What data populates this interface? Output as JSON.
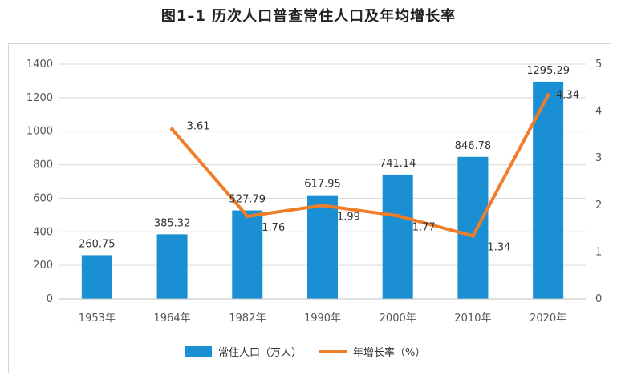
{
  "title": "图1–1   历次人口普查常住人口及年均增长率",
  "chart_data": {
    "type": "bar",
    "categories": [
      "1953年",
      "1964年",
      "1982年",
      "1990年",
      "2000年",
      "2010年",
      "2020年"
    ],
    "series": [
      {
        "name": "常住人口（万人）",
        "type": "bar",
        "axis": "left",
        "color": "#1b8fd3",
        "values": [
          260.75,
          385.32,
          527.79,
          617.95,
          741.14,
          846.78,
          1295.29
        ],
        "labels": [
          "260.75",
          "385.32",
          "527.79",
          "617.95",
          "741.14",
          "846.78",
          "1295.29"
        ]
      },
      {
        "name": "年增长率（%）",
        "type": "line",
        "axis": "right",
        "color": "#f07d2a",
        "values": [
          null,
          3.61,
          1.76,
          1.99,
          1.77,
          1.34,
          4.34
        ],
        "labels": [
          "",
          "3.61",
          "1.76",
          "1.99",
          "1.77",
          "1.34",
          "4.34"
        ]
      }
    ],
    "y_left": {
      "min": 0,
      "max": 1400,
      "ticks": [
        "0",
        "200",
        "400",
        "600",
        "800",
        "1000",
        "1200",
        "1400"
      ]
    },
    "y_right": {
      "min": 0,
      "max": 5,
      "ticks": [
        "0",
        "1",
        "2",
        "3",
        "4",
        "5"
      ]
    },
    "grid": true,
    "legend_position": "bottom"
  }
}
